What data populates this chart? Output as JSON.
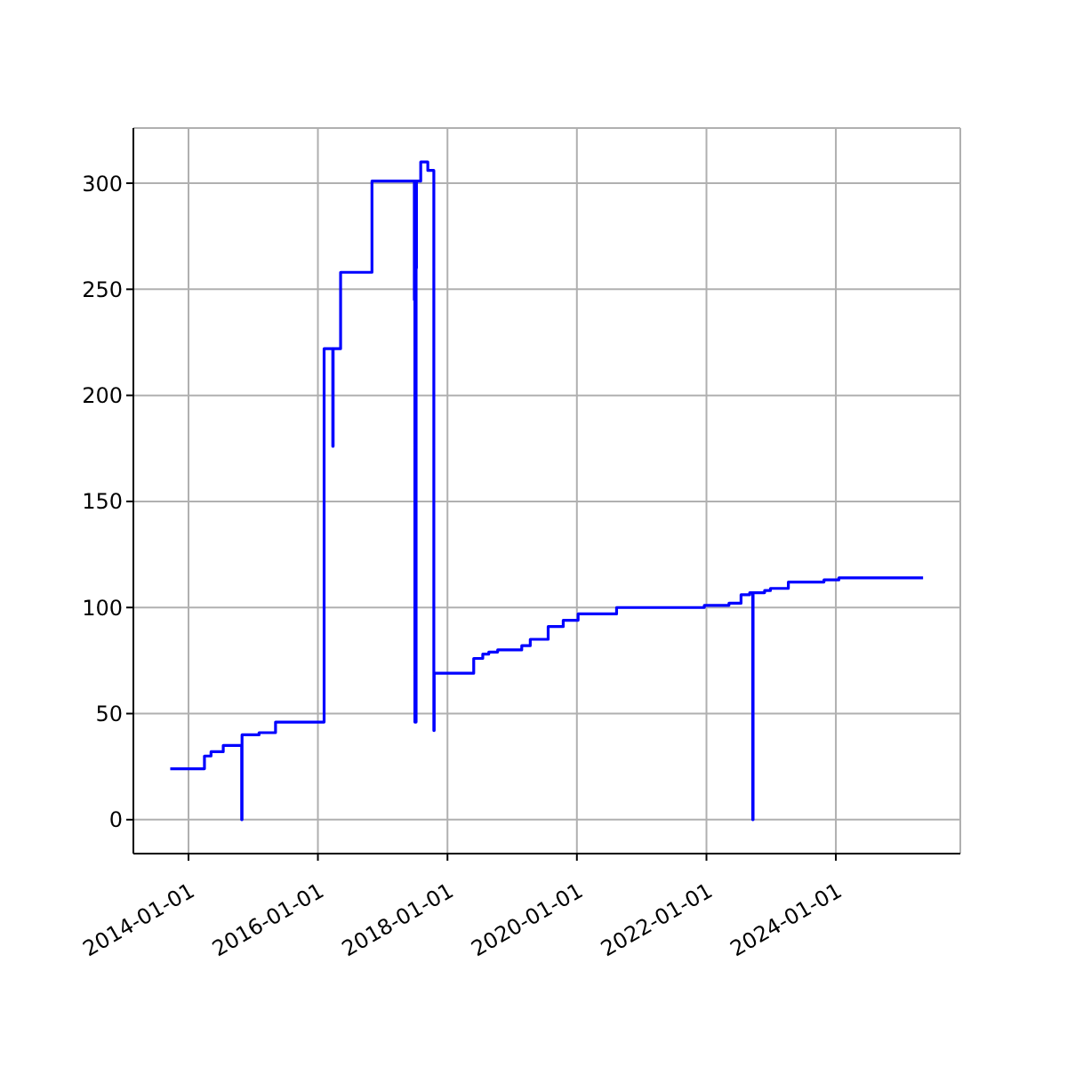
{
  "chart_data": {
    "type": "step",
    "color": "#0000ff",
    "grid": true,
    "marker": "none",
    "line_style": "solid",
    "x": [
      "2013-09-20",
      "2014-04-01",
      "2014-05-08",
      "2014-07-16",
      "2014-10-28",
      "2014-10-30",
      "2015-02-03",
      "2015-05-07",
      "2016-02-05",
      "2016-03-25",
      "2016-03-27",
      "2016-05-08",
      "2016-11-01",
      "2017-06-28",
      "2017-06-30",
      "2017-07-01",
      "2017-07-03",
      "2017-07-06",
      "2017-07-08",
      "2017-07-10",
      "2017-08-03",
      "2017-09-12",
      "2017-10-16",
      "2017-10-18",
      "2018-05-29",
      "2018-07-19",
      "2018-08-22",
      "2018-10-11",
      "2019-02-24",
      "2019-04-13",
      "2019-07-23",
      "2019-10-16",
      "2020-01-08",
      "2020-08-12",
      "2021-12-20",
      "2022-05-08",
      "2022-07-15",
      "2022-09-02",
      "2022-09-19",
      "2022-09-21",
      "2022-11-25",
      "2022-12-28",
      "2023-04-08",
      "2023-10-26",
      "2024-01-18",
      "2025-05-07"
    ],
    "values": [
      24,
      30,
      32,
      35,
      0,
      40,
      41,
      46,
      222,
      176,
      222,
      258,
      301,
      245,
      301,
      46,
      301,
      46,
      260,
      301,
      310,
      306,
      42,
      69,
      76,
      78,
      79,
      80,
      82,
      85,
      91,
      94,
      97,
      100,
      101,
      102,
      106,
      107,
      0,
      107,
      108,
      109,
      112,
      113,
      114,
      114
    ],
    "xlim": [
      "2013-02-24",
      "2025-12-03"
    ],
    "xticks": [
      "2014-01-01",
      "2016-01-01",
      "2018-01-01",
      "2020-01-01",
      "2022-01-01",
      "2024-01-01"
    ],
    "ylim": [
      -16,
      326
    ],
    "yticks": [
      0,
      50,
      100,
      150,
      200,
      250,
      300
    ]
  }
}
